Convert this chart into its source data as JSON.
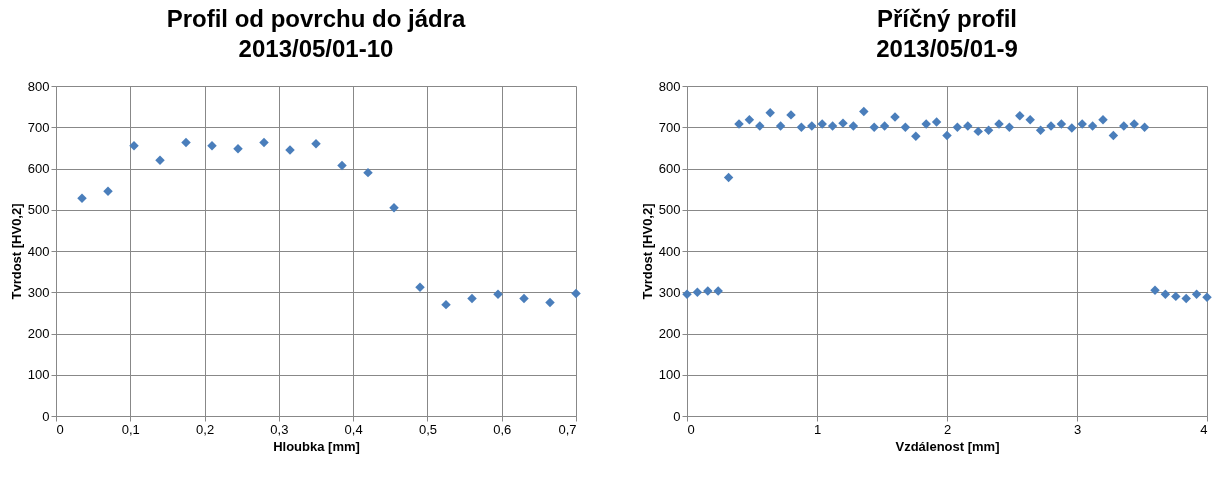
{
  "chart_data": [
    {
      "type": "scatter",
      "title": "Profil od povrchu do jádra",
      "subtitle": "2013/05/01-10",
      "xlabel": "Hloubka [mm]",
      "ylabel": "Tvrdost [HV0,2]",
      "marker": "diamond",
      "grid": true,
      "x": [
        0.035,
        0.07,
        0.105,
        0.14,
        0.175,
        0.21,
        0.245,
        0.28,
        0.315,
        0.35,
        0.385,
        0.42,
        0.455,
        0.49,
        0.525,
        0.56,
        0.595,
        0.63,
        0.665,
        0.7
      ],
      "series": [
        {
          "color": "#4a7ebb",
          "values": [
            528,
            545,
            655,
            620,
            663,
            655,
            648,
            663,
            645,
            660,
            607,
            590,
            505,
            312,
            270,
            285,
            295,
            285,
            275,
            297
          ]
        }
      ],
      "xlim": [
        0,
        0.7
      ],
      "xticks": [
        0,
        {
          "value": 0.1,
          "label": "0,1"
        },
        {
          "value": 0.2,
          "label": "0,2"
        },
        {
          "value": 0.3,
          "label": "0,3"
        },
        {
          "value": 0.4,
          "label": "0,4"
        },
        {
          "value": 0.5,
          "label": "0,5"
        },
        {
          "value": 0.6,
          "label": "0,6"
        },
        {
          "value": 0.7,
          "label": "0,7"
        }
      ],
      "ylim": [
        0,
        800
      ],
      "yticks": [
        0,
        100,
        200,
        300,
        400,
        500,
        600,
        700,
        800
      ]
    },
    {
      "type": "scatter",
      "title": "Příčný profil",
      "subtitle": "2013/05/01-9",
      "xlabel": "Vzdálenost [mm]",
      "ylabel": "Tvrdost [HV0,2]",
      "marker": "diamond",
      "grid": true,
      "x": [
        0,
        0.08,
        0.16,
        0.24,
        0.32,
        0.4,
        0.48,
        0.56,
        0.64,
        0.72,
        0.8,
        0.88,
        0.96,
        1.04,
        1.12,
        1.2,
        1.28,
        1.36,
        1.44,
        1.52,
        1.6,
        1.68,
        1.76,
        1.84,
        1.92,
        2.0,
        2.08,
        2.16,
        2.24,
        2.32,
        2.4,
        2.48,
        2.56,
        2.64,
        2.72,
        2.8,
        2.88,
        2.96,
        3.04,
        3.12,
        3.2,
        3.28,
        3.36,
        3.44,
        3.52,
        3.6,
        3.68,
        3.76,
        3.84,
        3.92,
        4.0
      ],
      "series": [
        {
          "color": "#4a7ebb",
          "values": [
            295,
            300,
            303,
            303,
            578,
            708,
            718,
            703,
            735,
            703,
            730,
            700,
            703,
            708,
            703,
            710,
            703,
            738,
            700,
            703,
            725,
            700,
            678,
            708,
            713,
            680,
            700,
            703,
            690,
            693,
            708,
            700,
            728,
            718,
            693,
            703,
            708,
            698,
            708,
            703,
            718,
            680,
            703,
            708,
            700,
            305,
            295,
            290,
            285,
            295,
            288
          ]
        }
      ],
      "xlim": [
        0,
        4
      ],
      "xticks": [
        0,
        1,
        2,
        3,
        4
      ],
      "ylim": [
        0,
        800
      ],
      "yticks": [
        0,
        100,
        200,
        300,
        400,
        500,
        600,
        700,
        800
      ]
    }
  ]
}
